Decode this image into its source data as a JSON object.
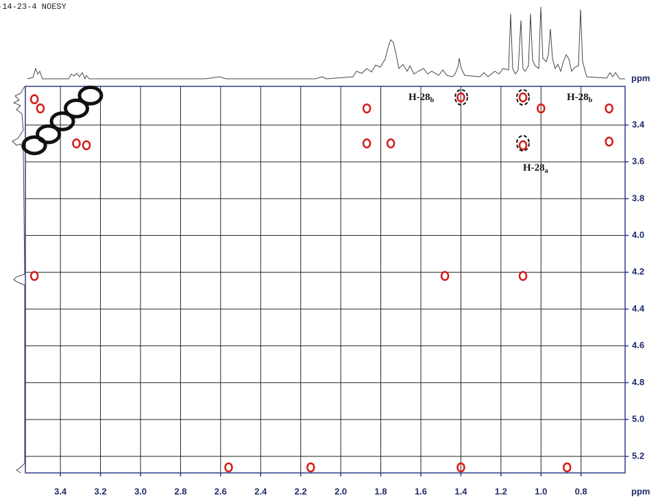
{
  "chart_data": {
    "type": "nmr2d",
    "title": "-14-23-4 NOESY",
    "x_unit": "ppm",
    "y_unit": "ppm",
    "xlim": [
      3.575,
      0.58
    ],
    "ylim": [
      3.19,
      5.29
    ],
    "xticks": [
      3.4,
      3.2,
      {
        "value": 3,
        "label": "3.0"
      },
      2.8,
      2.6,
      2.4,
      2.2,
      {
        "value": 2,
        "label": "2.0"
      },
      1.8,
      1.6,
      1.4,
      1.2,
      {
        "value": 1,
        "label": "1.0"
      },
      0.8
    ],
    "yticks": [
      3.4,
      3.6,
      3.8,
      {
        "value": 4,
        "label": "4.0"
      },
      4.2,
      4.4,
      4.6,
      4.8,
      {
        "value": 5,
        "label": "5.0"
      },
      5.2
    ],
    "grid": true,
    "cross_peaks": {
      "color": "#d41a1a",
      "x": [
        3.53,
        3.5,
        3.32,
        3.27,
        1.87,
        1.4,
        1.09,
        1.0,
        0.66,
        1.87,
        1.75,
        1.09,
        0.66,
        3.53,
        1.48,
        1.09,
        2.56,
        1.4,
        0.87,
        2.15
      ],
      "y": [
        3.26,
        3.31,
        3.5,
        3.51,
        3.31,
        3.25,
        3.25,
        3.31,
        3.31,
        3.5,
        3.5,
        3.51,
        3.49,
        4.22,
        4.22,
        4.22,
        5.26,
        5.26,
        5.26,
        5.26
      ]
    },
    "diagonal_peaks": {
      "color": "#111111",
      "x": [
        3.53,
        3.46,
        3.39,
        3.32,
        3.25
      ],
      "y": [
        3.51,
        3.45,
        3.38,
        3.31,
        3.24
      ]
    },
    "annotations": [
      {
        "text": "H-28",
        "sub": "b"
      },
      {
        "text": "H-28",
        "sub": "b"
      },
      {
        "text": "H-28",
        "sub": "a"
      }
    ]
  }
}
